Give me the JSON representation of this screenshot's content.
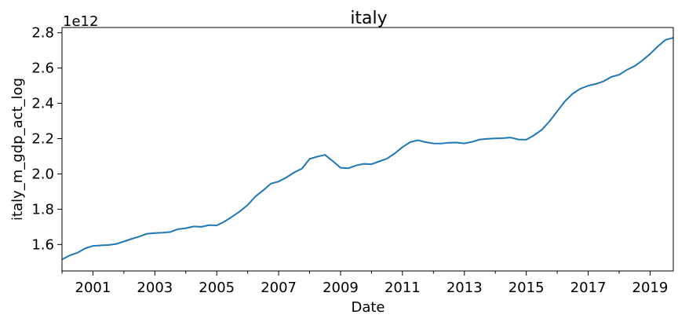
{
  "chart_data": {
    "type": "line",
    "title": "italy",
    "xlabel": "Date",
    "ylabel": "italy_m_gdp_act_log",
    "y_offset_label": "1e12",
    "xlim": [
      "2000-01-01",
      "2019-10-01"
    ],
    "ylim": [
      1.45,
      2.83
    ],
    "y_scale_factor": 1000000000000.0,
    "grid": false,
    "colors": {
      "line": "#1f77b4"
    },
    "x_tick_labels": [
      "2001",
      "2003",
      "2005",
      "2007",
      "2009",
      "2011",
      "2013",
      "2015",
      "2017",
      "2019"
    ],
    "y_tick_labels": [
      "1.6",
      "1.8",
      "2.0",
      "2.2",
      "2.4",
      "2.6",
      "2.8"
    ],
    "series": [
      {
        "x": [
          "2000-01-01",
          "2000-04-01",
          "2000-07-01",
          "2000-10-01",
          "2001-01-01",
          "2001-04-01",
          "2001-07-01",
          "2001-10-01",
          "2002-01-01",
          "2002-04-01",
          "2002-07-01",
          "2002-10-01",
          "2003-01-01",
          "2003-04-01",
          "2003-07-01",
          "2003-10-01",
          "2004-01-01",
          "2004-04-01",
          "2004-07-01",
          "2004-10-01",
          "2005-01-01",
          "2005-04-01",
          "2005-07-01",
          "2005-10-01",
          "2006-01-01",
          "2006-04-01",
          "2006-07-01",
          "2006-10-01",
          "2007-01-01",
          "2007-04-01",
          "2007-07-01",
          "2007-10-01",
          "2008-01-01",
          "2008-04-01",
          "2008-07-01",
          "2008-10-01",
          "2009-01-01",
          "2009-04-01",
          "2009-07-01",
          "2009-10-01",
          "2010-01-01",
          "2010-04-01",
          "2010-07-01",
          "2010-10-01",
          "2011-01-01",
          "2011-04-01",
          "2011-07-01",
          "2011-10-01",
          "2012-01-01",
          "2012-04-01",
          "2012-07-01",
          "2012-10-01",
          "2013-01-01",
          "2013-04-01",
          "2013-07-01",
          "2013-10-01",
          "2014-01-01",
          "2014-04-01",
          "2014-07-01",
          "2014-10-01",
          "2015-01-01",
          "2015-04-01",
          "2015-07-01",
          "2015-10-01",
          "2016-01-01",
          "2016-04-01",
          "2016-07-01",
          "2016-10-01",
          "2017-01-01",
          "2017-04-01",
          "2017-07-01",
          "2017-10-01",
          "2018-01-01",
          "2018-04-01",
          "2018-07-01",
          "2018-10-01",
          "2019-01-01",
          "2019-04-01",
          "2019-07-01",
          "2019-10-01"
        ],
        "values": [
          1.515,
          1.538,
          1.553,
          1.578,
          1.592,
          1.595,
          1.597,
          1.603,
          1.617,
          1.632,
          1.645,
          1.661,
          1.665,
          1.667,
          1.671,
          1.687,
          1.692,
          1.702,
          1.7,
          1.71,
          1.708,
          1.73,
          1.758,
          1.788,
          1.824,
          1.872,
          1.907,
          1.945,
          1.957,
          1.98,
          2.008,
          2.03,
          2.085,
          2.098,
          2.108,
          2.072,
          2.035,
          2.032,
          2.048,
          2.057,
          2.055,
          2.071,
          2.087,
          2.116,
          2.152,
          2.18,
          2.191,
          2.18,
          2.173,
          2.172,
          2.177,
          2.178,
          2.173,
          2.182,
          2.195,
          2.199,
          2.201,
          2.203,
          2.206,
          2.195,
          2.194,
          2.219,
          2.25,
          2.298,
          2.355,
          2.412,
          2.455,
          2.483,
          2.5,
          2.51,
          2.525,
          2.55,
          2.562,
          2.59,
          2.611,
          2.643,
          2.68,
          2.723,
          2.76,
          2.772
        ]
      }
    ]
  }
}
